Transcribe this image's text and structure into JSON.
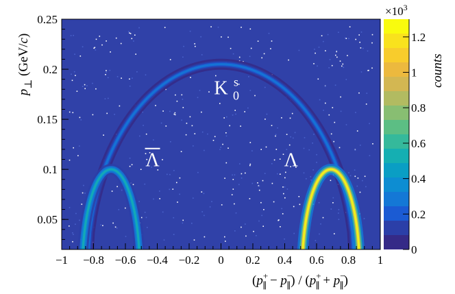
{
  "chart_data": {
    "type": "heatmap",
    "title": "",
    "xlabel": "(p∥⁺ − p∥⁻) / (p∥⁺ + p∥⁻)",
    "ylabel": "p⊥ (GeV/c)",
    "xlim": [
      -1,
      1
    ],
    "ylim": [
      0.02,
      0.25
    ],
    "x_ticks": [
      "−1",
      "−0.8",
      "−0.6",
      "−0.4",
      "−0.2",
      "0",
      "0.2",
      "0.4",
      "0.6",
      "0.8",
      "1"
    ],
    "y_ticks": [
      "0.05",
      "0.1",
      "0.15",
      "0.2",
      "0.25"
    ],
    "z_label": "counts",
    "z_multiplier": "×10",
    "z_multiplier_exp": "3",
    "z_range": [
      0,
      1300
    ],
    "z_ticks": [
      "0",
      "0.2",
      "0.4",
      "0.6",
      "0.8",
      "1",
      "1.2"
    ],
    "background_color": "#3041a8",
    "colormap": [
      "#352a87",
      "#2b3fa8",
      "#1b5bd3",
      "#1478d6",
      "#0d8dd2",
      "#0a9ec4",
      "#15afb2",
      "#35b99b",
      "#5cbe84",
      "#88be72",
      "#b2bb61",
      "#d3b752",
      "#ecb93e",
      "#f8cc2c",
      "#f9e21d",
      "#f9fb0e"
    ],
    "features": [
      {
        "name": "K0s",
        "shape": "ellipse",
        "x_center": 0.0,
        "x_half_width": 0.84,
        "y_peak": 0.205,
        "peak_counts": 300
      },
      {
        "name": "Lambda",
        "shape": "ellipse",
        "x_center": 0.69,
        "x_half_width": 0.18,
        "y_peak": 0.1,
        "peak_counts": 1280
      },
      {
        "name": "AntiLambda",
        "shape": "ellipse",
        "x_center": -0.69,
        "x_half_width": 0.18,
        "y_peak": 0.1,
        "peak_counts": 550
      }
    ],
    "annotations": [
      {
        "text": "K",
        "sup": "s",
        "sub": "0",
        "x": 0.0,
        "y": 0.175
      },
      {
        "text": "Λ",
        "x": 0.44,
        "y": 0.103
      },
      {
        "text": "Λ",
        "overline": true,
        "x": -0.43,
        "y": 0.103
      }
    ]
  }
}
